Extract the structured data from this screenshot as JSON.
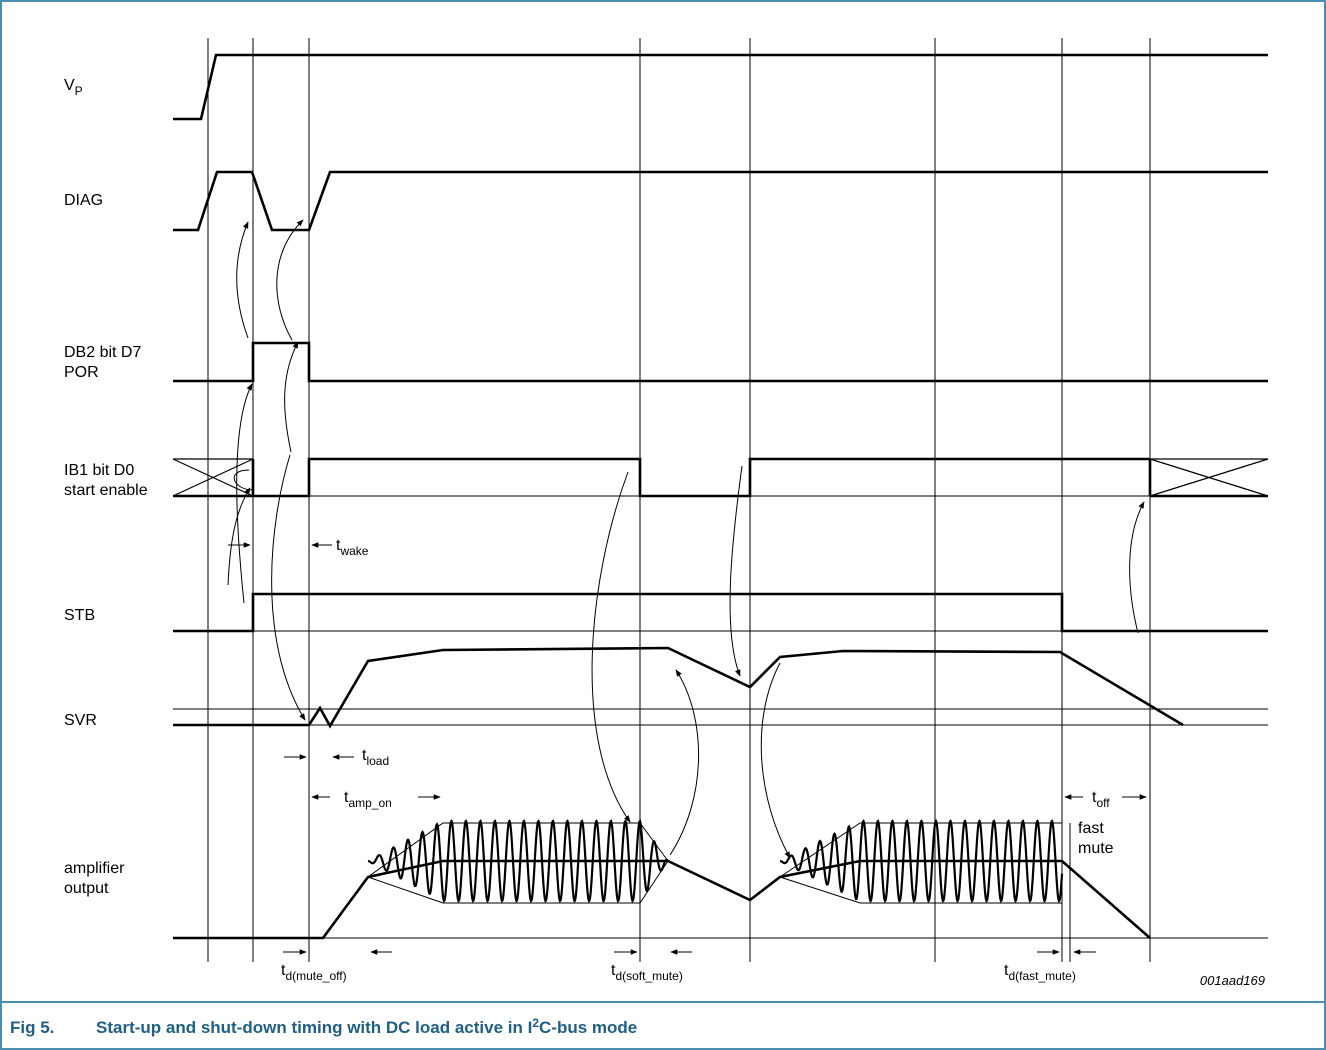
{
  "figure": {
    "caption_prefix": "Fig 5.",
    "caption_part1": "Start-up and shut-down timing with DC load active in I",
    "caption_sup": "2",
    "caption_part2": "C-bus mode",
    "code": "001aad169",
    "frame_color": "#4a8fb0",
    "caption_color": "#1f5f85"
  },
  "signals": {
    "vp": {
      "main": "V",
      "sub": "P"
    },
    "diag": "DIAG",
    "db2_line1": "DB2 bit D7",
    "db2_line2": "POR",
    "ib1_line1": "IB1 bit D0",
    "ib1_line2": "start enable",
    "stb": "STB",
    "svr": "SVR",
    "amp_line1": "amplifier",
    "amp_line2": "output"
  },
  "timings": {
    "t_wake": {
      "main": "t",
      "sub": "wake"
    },
    "t_load": {
      "main": "t",
      "sub": "load"
    },
    "t_amp_on": {
      "main": "t",
      "sub": "amp_on"
    },
    "t_off": {
      "main": "t",
      "sub": "off"
    },
    "t_d_mute_off": {
      "main": "t",
      "sub": "d(mute_off)"
    },
    "t_d_soft_mute": {
      "main": "t",
      "sub": "d(soft_mute)"
    },
    "t_d_fast_mute": {
      "main": "t",
      "sub": "d(fast_mute)"
    },
    "fast_mute_line1": "fast",
    "fast_mute_line2": "mute"
  }
}
